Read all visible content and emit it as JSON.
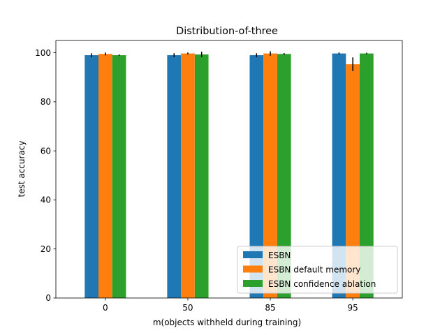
{
  "chart_data": {
    "type": "bar",
    "title": "Distribution-of-three",
    "xlabel": "m(objects withheld during training)",
    "ylabel": "test accuracy",
    "categories": [
      "0",
      "50",
      "85",
      "95"
    ],
    "ylim": [
      0,
      105
    ],
    "yticks": [
      0,
      20,
      40,
      60,
      80,
      100
    ],
    "grid": false,
    "legend_position": "bottom-right",
    "series": [
      {
        "name": "ESBN",
        "color": "#1f77b4",
        "values": [
          99.0,
          99.0,
          99.0,
          99.7
        ],
        "errors": [
          0.8,
          0.8,
          0.8,
          0.4
        ]
      },
      {
        "name": "ESBN default memory",
        "color": "#ff7f0e",
        "values": [
          99.5,
          99.7,
          99.7,
          95.3
        ],
        "errors": [
          0.6,
          0.4,
          0.9,
          2.8
        ]
      },
      {
        "name": "ESBN confidence ablation",
        "color": "#2ca02c",
        "values": [
          99.0,
          99.3,
          99.5,
          99.7
        ],
        "errors": [
          0.3,
          1.1,
          0.4,
          0.3
        ]
      }
    ]
  }
}
